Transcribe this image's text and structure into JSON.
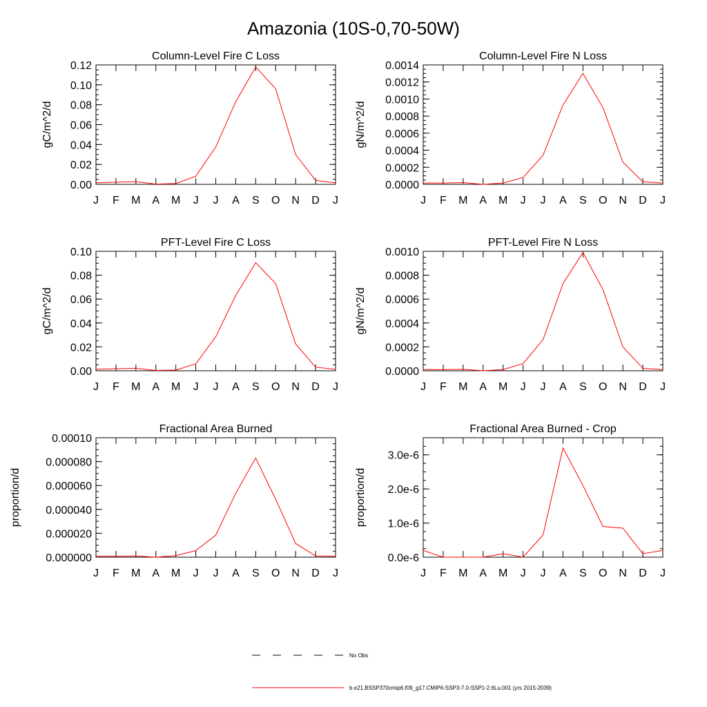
{
  "page": {
    "title": "Amazonia (10S-0,70-50W)"
  },
  "legend": {
    "entries": [
      {
        "label": "No Obs",
        "style": "dashed",
        "color": "#000000"
      },
      {
        "label": "b.e21.BSSP370cmip6.f09_g17.CMIP6-SSP3-7.0-SSP1-2.6Lu.001 (yrs 2015-2039)",
        "style": "solid",
        "color": "#ff0000"
      }
    ]
  },
  "chart_data": [
    {
      "type": "line",
      "title": "Column-Level Fire C Loss",
      "ylabel": "gC/m^2/d",
      "xlabel": "",
      "categories": [
        "J",
        "F",
        "M",
        "A",
        "M",
        "J",
        "J",
        "A",
        "S",
        "O",
        "N",
        "D",
        "J"
      ],
      "ylim": [
        0,
        0.12
      ],
      "yticks": [
        0,
        0.02,
        0.04,
        0.06,
        0.08,
        0.1,
        0.12
      ],
      "ytick_labels": [
        "0.00",
        "0.02",
        "0.04",
        "0.06",
        "0.08",
        "0.10",
        "0.12"
      ],
      "series": [
        {
          "color": "#ff0000",
          "values": [
            0.0015,
            0.0022,
            0.0027,
            0.0003,
            0.0008,
            0.0082,
            0.0375,
            0.083,
            0.118,
            0.096,
            0.03,
            0.004,
            0.0015
          ]
        }
      ]
    },
    {
      "type": "line",
      "title": "Column-Level Fire N Loss",
      "ylabel": "gN/m^2/d",
      "xlabel": "",
      "categories": [
        "J",
        "F",
        "M",
        "A",
        "M",
        "J",
        "J",
        "A",
        "S",
        "O",
        "N",
        "D",
        "J"
      ],
      "ylim": [
        0,
        0.0014
      ],
      "yticks": [
        0,
        0.0002,
        0.0004,
        0.0006,
        0.0008,
        0.001,
        0.0012,
        0.0014
      ],
      "ytick_labels": [
        "0.0000",
        "0.0002",
        "0.0004",
        "0.0006",
        "0.0008",
        "0.0010",
        "0.0012",
        "0.0014"
      ],
      "series": [
        {
          "color": "#ff0000",
          "values": [
            1.5e-05,
            1.5e-05,
            2e-05,
            0.0,
            1.5e-05,
            8e-05,
            0.00034,
            0.00093,
            0.0013,
            0.0009,
            0.00026,
            3e-05,
            1.5e-05
          ]
        }
      ]
    },
    {
      "type": "line",
      "title": "PFT-Level Fire C Loss",
      "ylabel": "gC/m^2/d",
      "xlabel": "",
      "categories": [
        "J",
        "F",
        "M",
        "A",
        "M",
        "J",
        "J",
        "A",
        "S",
        "O",
        "N",
        "D",
        "J"
      ],
      "ylim": [
        0,
        0.1
      ],
      "yticks": [
        0,
        0.02,
        0.04,
        0.06,
        0.08,
        0.1
      ],
      "ytick_labels": [
        "0.00",
        "0.02",
        "0.04",
        "0.06",
        "0.08",
        "0.10"
      ],
      "series": [
        {
          "color": "#ff0000",
          "values": [
            0.0012,
            0.0017,
            0.0021,
            0.0003,
            0.0006,
            0.0058,
            0.0285,
            0.063,
            0.0905,
            0.073,
            0.0225,
            0.003,
            0.0012
          ]
        }
      ]
    },
    {
      "type": "line",
      "title": "PFT-Level Fire N Loss",
      "ylabel": "gN/m^2/d",
      "xlabel": "",
      "categories": [
        "J",
        "F",
        "M",
        "A",
        "M",
        "J",
        "J",
        "A",
        "S",
        "O",
        "N",
        "D",
        "J"
      ],
      "ylim": [
        0,
        0.001
      ],
      "yticks": [
        0,
        0.0002,
        0.0004,
        0.0006,
        0.0008,
        0.001
      ],
      "ytick_labels": [
        "0.0000",
        "0.0002",
        "0.0004",
        "0.0006",
        "0.0008",
        "0.0010"
      ],
      "series": [
        {
          "color": "#ff0000",
          "values": [
            1e-05,
            1e-05,
            1.2e-05,
            0.0,
            1e-05,
            6e-05,
            0.00026,
            0.00073,
            0.00099,
            0.00068,
            0.0002,
            2e-05,
            1e-05
          ]
        }
      ]
    },
    {
      "type": "line",
      "title": "Fractional Area Burned",
      "ylabel": "proportion/d",
      "xlabel": "",
      "categories": [
        "J",
        "F",
        "M",
        "A",
        "M",
        "J",
        "J",
        "A",
        "S",
        "O",
        "N",
        "D",
        "J"
      ],
      "ylim": [
        0,
        0.0001
      ],
      "yticks": [
        0,
        2e-05,
        4e-05,
        6e-05,
        8e-05,
        0.0001
      ],
      "ytick_labels": [
        "0.000000",
        "0.000020",
        "0.000040",
        "0.000060",
        "0.000080",
        "0.00010"
      ],
      "series": [
        {
          "color": "#ff0000",
          "values": [
            8e-07,
            8e-07,
            1e-06,
            0.0,
            1.3e-06,
            5.5e-06,
            1.85e-05,
            5.35e-05,
            8.3e-05,
            4.85e-05,
            1.15e-05,
            1e-06,
            8e-07
          ]
        }
      ]
    },
    {
      "type": "line",
      "title": "Fractional Area Burned - Crop",
      "ylabel": "proportion/d",
      "xlabel": "",
      "categories": [
        "J",
        "F",
        "M",
        "A",
        "M",
        "J",
        "J",
        "A",
        "S",
        "O",
        "N",
        "D",
        "J"
      ],
      "ylim": [
        0,
        3.5e-06
      ],
      "yticks": [
        0,
        1e-06,
        2e-06,
        3e-06
      ],
      "ytick_labels": [
        "0.0e-6",
        "1.0e-6",
        "2.0e-6",
        "3.0e-6"
      ],
      "series": [
        {
          "color": "#ff0000",
          "values": [
            2e-07,
            0.0,
            0.0,
            0.0,
            1e-07,
            0.0,
            6.5e-07,
            3.2e-06,
            2.1e-06,
            9e-07,
            8.5e-07,
            1e-07,
            2e-07
          ]
        }
      ]
    }
  ]
}
